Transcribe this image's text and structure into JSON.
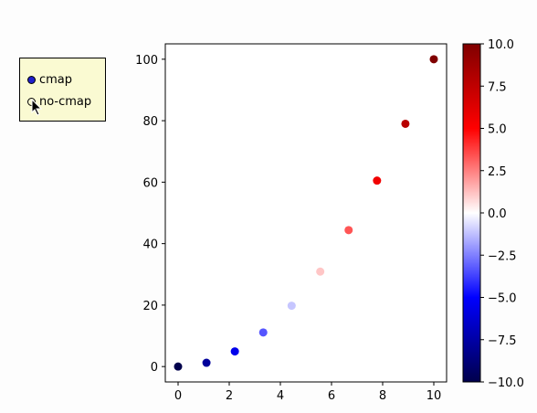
{
  "radio": {
    "options": [
      {
        "label": "cmap",
        "selected": true
      },
      {
        "label": "no-cmap",
        "selected": false
      }
    ]
  },
  "chart_data": {
    "type": "scatter",
    "x": [
      0,
      1.11,
      2.22,
      3.33,
      4.44,
      5.56,
      6.67,
      7.78,
      8.89,
      10
    ],
    "y": [
      0,
      1.23,
      4.94,
      11.1,
      19.8,
      30.9,
      44.4,
      60.5,
      79.0,
      100
    ],
    "c": [
      -10,
      -7.78,
      -5.56,
      -3.33,
      -1.11,
      1.11,
      3.33,
      5.56,
      7.78,
      10
    ],
    "xlim": [
      -0.5,
      10.5
    ],
    "ylim": [
      -5,
      105
    ],
    "xticks": [
      "0",
      "2",
      "4",
      "6",
      "8",
      "10"
    ],
    "yticks": [
      "0",
      "20",
      "40",
      "60",
      "80",
      "100"
    ],
    "colorbar": {
      "colormap": "seismic",
      "range": [
        -10,
        10
      ],
      "ticks": [
        "−10.0",
        "−7.5",
        "−5.0",
        "−2.5",
        "0.0",
        "2.5",
        "5.0",
        "7.5",
        "10.0"
      ]
    },
    "grid": false,
    "title": "",
    "xlabel": "",
    "ylabel": ""
  }
}
